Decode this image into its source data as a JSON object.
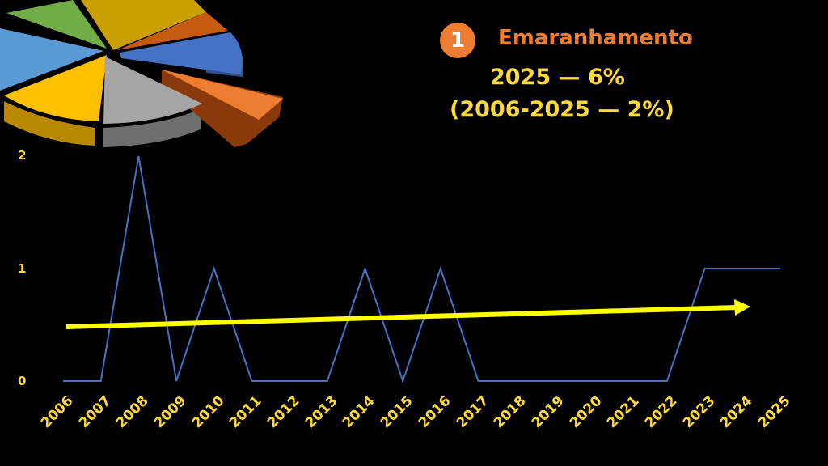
{
  "header": {
    "badge_number": "1",
    "title": "Emaranhamento",
    "subtitle_line1": "2025 — 6%",
    "subtitle_line2": "(2006-2025 — 2%)"
  },
  "colors": {
    "background": "#000000",
    "title": "#ED7D31",
    "badge": "#ED7D31",
    "label_text": "#FFD93A",
    "series_line": "#4472C4",
    "trend_arrow": "#FFFF00"
  },
  "pie_decoration": {
    "slice_colors": [
      "#70AD47",
      "#C9A000",
      "#C55A11",
      "#4472C4",
      "#ED7D31",
      "#A5A5A5",
      "#FFC000",
      "#5B9BD5"
    ],
    "exploded_slice_color": "#ED7D31"
  },
  "chart_data": {
    "type": "line",
    "title": "Emaranhamento",
    "subtitle": "2025 — 6% (2006-2025 — 2%)",
    "xlabel": "",
    "ylabel": "",
    "categories": [
      "2006",
      "2007",
      "2008",
      "2009",
      "2010",
      "2011",
      "2012",
      "2013",
      "2014",
      "2015",
      "2016",
      "2017",
      "2018",
      "2019",
      "2020",
      "2021",
      "2022",
      "2023",
      "2024",
      "2025"
    ],
    "series": [
      {
        "name": "Emaranhamento",
        "color": "#4472C4",
        "values": [
          0,
          0,
          2,
          0,
          1,
          0,
          0,
          0,
          1,
          0,
          1,
          0,
          0,
          0,
          0,
          0,
          0,
          1,
          1,
          1
        ]
      }
    ],
    "trend": {
      "type": "arrow",
      "color": "#FFFF00",
      "start_value": 0.5,
      "end_value": 0.66,
      "direction": "up-right"
    },
    "yticks": [
      "0",
      "1",
      "2"
    ],
    "ylim": [
      0,
      2
    ],
    "grid": false,
    "legend": "none",
    "x_tick_rotation": -45
  }
}
